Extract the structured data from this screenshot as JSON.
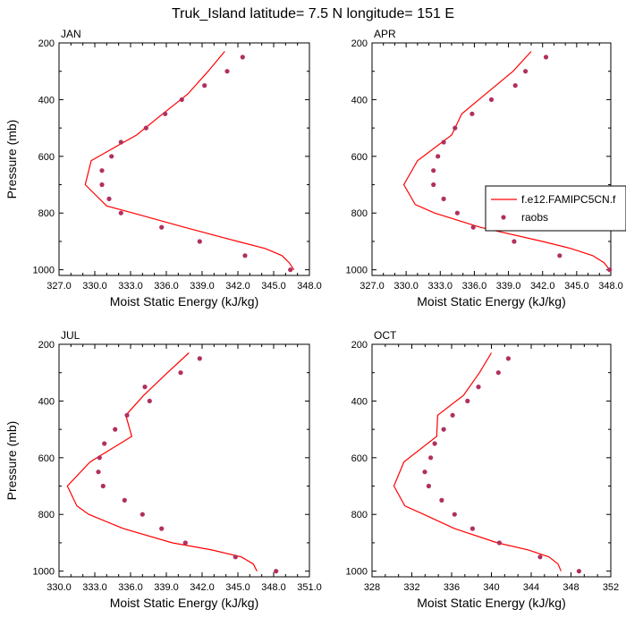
{
  "figure": {
    "title": "Truk_Island  latitude= 7.5 N longitude= 151 E"
  },
  "legend": {
    "model_label": "f.e12.FAMIPC5CN.f",
    "obs_label": "raobs",
    "model_color": "#ff0000",
    "obs_color": "#b03060"
  },
  "chart_data": [
    {
      "type": "line",
      "panel": "JAN",
      "xlabel": "Moist Static Energy (kJ/kg)",
      "ylabel": "Pressure (mb)",
      "xlim": [
        327.0,
        348.0
      ],
      "ylim": [
        1020,
        200
      ],
      "xticks": [
        "327.0",
        "330.0",
        "333.0",
        "336.0",
        "339.0",
        "342.0",
        "345.0",
        "348.0"
      ],
      "yticks": [
        "200",
        "400",
        "600",
        "800",
        "1000"
      ],
      "series": [
        {
          "name": "f.e12.FAMIPC5CN.f",
          "pressure": [
            1000,
            975,
            950,
            925,
            900,
            850,
            800,
            775,
            700,
            615,
            525,
            450,
            380,
            300,
            230
          ],
          "mse": [
            346.7,
            346.3,
            345.7,
            344.3,
            342.0,
            337.5,
            333.2,
            331.0,
            329.2,
            329.7,
            333.5,
            335.7,
            337.8,
            339.5,
            340.9
          ]
        },
        {
          "name": "raobs",
          "pressure": [
            1000,
            950,
            900,
            850,
            800,
            750,
            700,
            650,
            600,
            550,
            500,
            450,
            400,
            350,
            300,
            250
          ],
          "mse": [
            346.4,
            342.6,
            338.8,
            335.6,
            332.2,
            331.2,
            330.6,
            330.6,
            331.4,
            332.2,
            334.3,
            335.9,
            337.3,
            339.2,
            341.1,
            342.4
          ]
        }
      ]
    },
    {
      "type": "line",
      "panel": "APR",
      "xlabel": "Moist Static Energy (kJ/kg)",
      "ylabel": "",
      "xlim": [
        327.0,
        348.0
      ],
      "ylim": [
        1020,
        200
      ],
      "xticks": [
        "327.0",
        "330.0",
        "333.0",
        "336.0",
        "339.0",
        "342.0",
        "345.0",
        "348.0"
      ],
      "yticks": [
        "200",
        "400",
        "600",
        "800",
        "1000"
      ],
      "series": [
        {
          "name": "f.e12.FAMIPC5CN.f",
          "pressure": [
            1000,
            975,
            950,
            925,
            900,
            850,
            800,
            770,
            700,
            615,
            525,
            450,
            380,
            300,
            230
          ],
          "mse": [
            347.9,
            347.4,
            346.4,
            344.5,
            342.0,
            336.5,
            332.5,
            330.8,
            329.8,
            331.0,
            334.0,
            334.9,
            337.0,
            339.4,
            341.0
          ]
        },
        {
          "name": "raobs",
          "pressure": [
            1000,
            950,
            900,
            850,
            800,
            750,
            700,
            650,
            600,
            550,
            500,
            450,
            400,
            350,
            300,
            250
          ],
          "mse": [
            347.9,
            343.5,
            339.5,
            335.9,
            334.5,
            333.3,
            332.4,
            332.4,
            332.8,
            333.3,
            334.3,
            335.8,
            337.5,
            339.6,
            340.5,
            342.3
          ]
        }
      ]
    },
    {
      "type": "line",
      "panel": "JUL",
      "xlabel": "Moist Static Energy (kJ/kg)",
      "ylabel": "Pressure (mb)",
      "xlim": [
        330.0,
        351.0
      ],
      "ylim": [
        1020,
        200
      ],
      "xticks": [
        "330.0",
        "333.0",
        "336.0",
        "339.0",
        "342.0",
        "345.0",
        "348.0",
        "351.0"
      ],
      "yticks": [
        "200",
        "400",
        "600",
        "800",
        "1000"
      ],
      "series": [
        {
          "name": "f.e12.FAMIPC5CN.f",
          "pressure": [
            1000,
            975,
            950,
            925,
            900,
            850,
            800,
            770,
            700,
            615,
            525,
            450,
            380,
            300,
            230
          ],
          "mse": [
            346.6,
            346.3,
            345.3,
            342.8,
            339.5,
            335.4,
            332.5,
            331.5,
            330.7,
            332.6,
            336.1,
            335.6,
            337.1,
            339.1,
            340.9
          ]
        },
        {
          "name": "raobs",
          "pressure": [
            1000,
            950,
            900,
            850,
            800,
            750,
            700,
            650,
            600,
            550,
            500,
            450,
            400,
            350,
            300,
            250
          ],
          "mse": [
            348.2,
            344.8,
            340.6,
            338.6,
            337.0,
            335.5,
            333.7,
            333.3,
            333.4,
            333.8,
            334.7,
            335.7,
            337.6,
            337.2,
            340.2,
            341.8
          ]
        }
      ]
    },
    {
      "type": "line",
      "panel": "OCT",
      "xlabel": "Moist Static Energy (kJ/kg)",
      "ylabel": "",
      "xlim": [
        328,
        352
      ],
      "ylim": [
        1020,
        200
      ],
      "xticks": [
        "328",
        "332",
        "336",
        "340",
        "344",
        "348",
        "352"
      ],
      "yticks": [
        "200",
        "400",
        "600",
        "800",
        "1000"
      ],
      "series": [
        {
          "name": "f.e12.FAMIPC5CN.f",
          "pressure": [
            1000,
            975,
            950,
            925,
            900,
            850,
            800,
            770,
            700,
            615,
            525,
            450,
            380,
            300,
            230
          ],
          "mse": [
            347.0,
            346.7,
            345.8,
            343.7,
            340.6,
            336.3,
            333.2,
            331.3,
            330.2,
            331.2,
            334.5,
            334.6,
            337.2,
            338.8,
            340.0
          ]
        },
        {
          "name": "raobs",
          "pressure": [
            1000,
            950,
            900,
            850,
            800,
            750,
            700,
            650,
            600,
            550,
            500,
            450,
            400,
            350,
            300,
            250
          ],
          "mse": [
            348.8,
            344.9,
            340.8,
            338.1,
            336.3,
            335.0,
            333.7,
            333.3,
            333.9,
            334.3,
            335.2,
            336.1,
            337.6,
            338.7,
            340.7,
            341.7
          ]
        }
      ]
    }
  ]
}
